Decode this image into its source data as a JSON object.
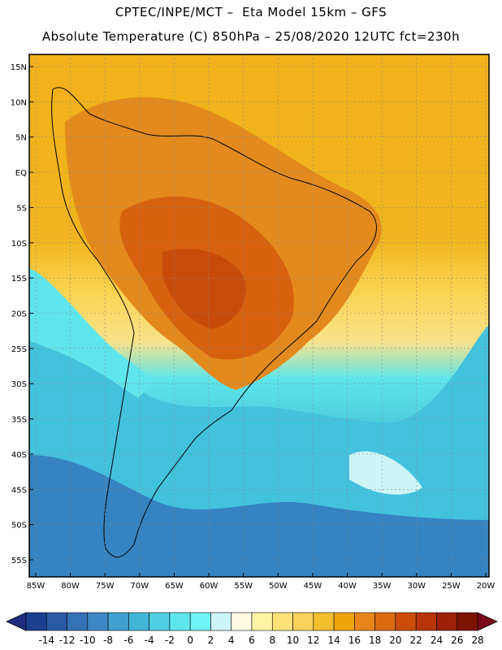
{
  "header": {
    "line1": "CPTEC/INPE/MCT –  Eta Model 15km – GFS",
    "line2": "Absolute Temperature (C) 850hPa – 25/08/2020 12UTC fct=230h"
  },
  "map": {
    "lat_labels": [
      "15N",
      "10N",
      "5N",
      "EQ",
      "5S",
      "10S",
      "15S",
      "20S",
      "25S",
      "30S",
      "35S",
      "40S",
      "45S",
      "50S",
      "55S"
    ],
    "lon_labels": [
      "85W",
      "80W",
      "75W",
      "70W",
      "65W",
      "60W",
      "55W",
      "50W",
      "45W",
      "40W",
      "35W",
      "30W",
      "25W",
      "20W"
    ]
  },
  "colorbar": {
    "labels": [
      "-14",
      "-12",
      "-10",
      "-8",
      "-6",
      "-4",
      "-2",
      "0",
      "2",
      "4",
      "6",
      "8",
      "10",
      "12",
      "14",
      "16",
      "18",
      "20",
      "22",
      "24",
      "26",
      "28"
    ],
    "colors": [
      "#1d3f8f",
      "#2a5aa6",
      "#3472b6",
      "#3c86c3",
      "#41a0cf",
      "#43b6d8",
      "#4fd0e2",
      "#5fe6ec",
      "#6ef4f4",
      "#cdf5f8",
      "#fffbe3",
      "#fff4a4",
      "#fbe377",
      "#f8d25a",
      "#f4bf2e",
      "#eea60c",
      "#e6861a",
      "#da6a10",
      "#cc4c0a",
      "#b73508",
      "#9c2106",
      "#7c1406"
    ],
    "low_color": "#1f2d80",
    "high_color": "#7a0a1a"
  }
}
